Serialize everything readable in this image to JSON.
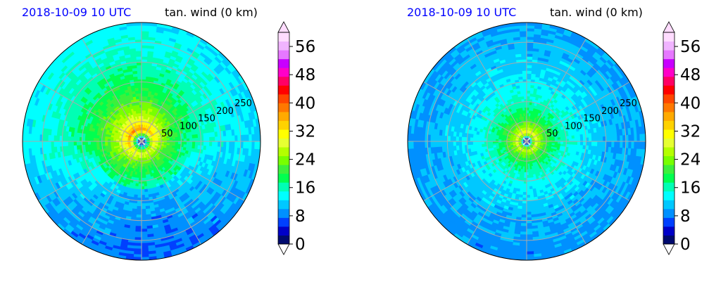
{
  "panels": [
    {
      "title_left": "2018-10-09 10 UTC",
      "title_right": "tan. wind (0 km)",
      "eye": {
        "shape": "asymmetric",
        "max_band": [
          32,
          36
        ]
      },
      "chart_data": {
        "type": "heatmap",
        "projection": "polar",
        "title": "tan. wind (0 km)",
        "radial_ticks": [
          "50",
          "100",
          "150",
          "200",
          "250"
        ],
        "radial_values": [
          50,
          100,
          150,
          200,
          250
        ],
        "radial_range": [
          0,
          300
        ],
        "grid": true,
        "colorbar": {
          "ticks": [
            0,
            8,
            16,
            24,
            32,
            40,
            48,
            56
          ],
          "range": [
            0,
            60
          ],
          "extend": "both",
          "colors": [
            "#000a6e",
            "#0000c8",
            "#0040ff",
            "#0090ff",
            "#00c8ff",
            "#00ffff",
            "#00ffb4",
            "#00ff50",
            "#3cf03c",
            "#78ff00",
            "#b4ff00",
            "#e6ff32",
            "#ffff00",
            "#ffd200",
            "#ffaa00",
            "#ff7800",
            "#ff4600",
            "#ff0000",
            "#ff0064",
            "#ff00c8",
            "#c800ff",
            "#e678ff",
            "#f0b4ff",
            "#ffdcff"
          ]
        }
      }
    },
    {
      "title_left": "2018-10-09 10 UTC",
      "title_right": "tan. wind (0 km)",
      "eye": {
        "shape": "symmetric",
        "max_band": [
          28,
          32
        ]
      },
      "chart_data": {
        "type": "heatmap",
        "projection": "polar",
        "title": "tan. wind (0 km)",
        "radial_ticks": [
          "50",
          "100",
          "150",
          "200",
          "250"
        ],
        "radial_values": [
          50,
          100,
          150,
          200,
          250
        ],
        "radial_range": [
          0,
          300
        ],
        "grid": true,
        "colorbar": {
          "ticks": [
            0,
            8,
            16,
            24,
            32,
            40,
            48,
            56
          ],
          "range": [
            0,
            60
          ],
          "extend": "both",
          "colors": [
            "#000a6e",
            "#0000c8",
            "#0040ff",
            "#0090ff",
            "#00c8ff",
            "#00ffff",
            "#00ffb4",
            "#00ff50",
            "#3cf03c",
            "#78ff00",
            "#b4ff00",
            "#e6ff32",
            "#ffff00",
            "#ffd200",
            "#ffaa00",
            "#ff7800",
            "#ff4600",
            "#ff0000",
            "#ff0064",
            "#ff00c8",
            "#c800ff",
            "#e678ff",
            "#f0b4ff",
            "#ffdcff"
          ]
        }
      }
    }
  ]
}
